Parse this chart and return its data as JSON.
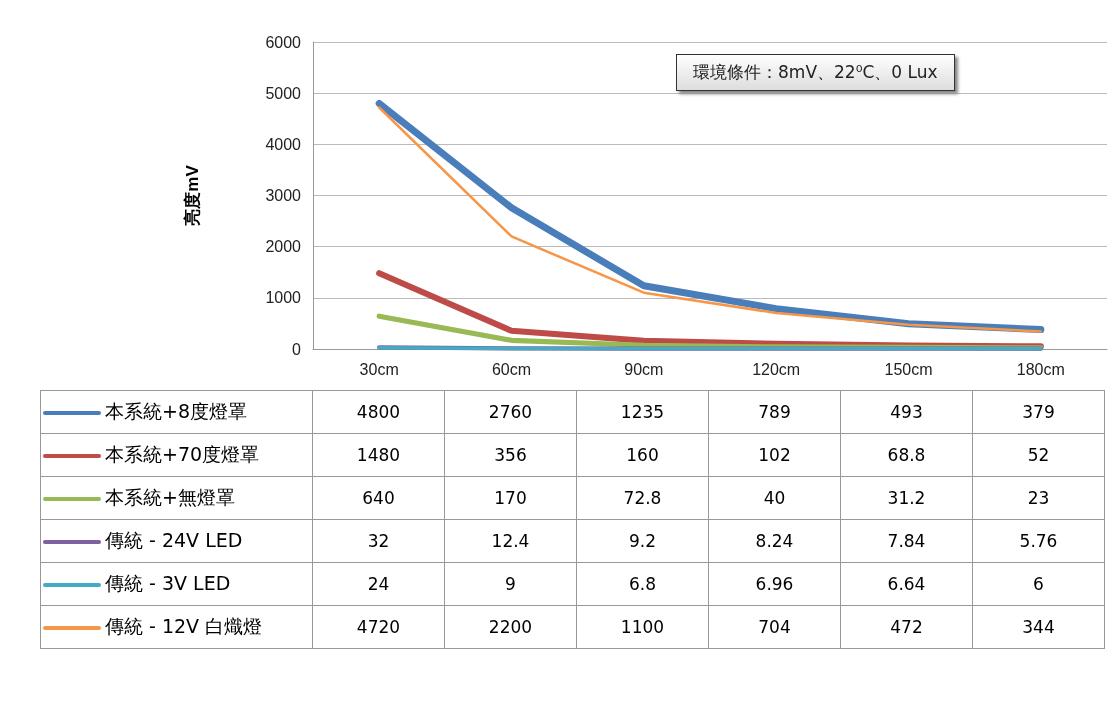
{
  "chart_data": {
    "type": "line",
    "ylabel": "亮度mV",
    "categories": [
      "30cm",
      "60cm",
      "90cm",
      "120cm",
      "150cm",
      "180cm"
    ],
    "series": [
      {
        "name": "本系統+8度燈罩",
        "color": "#4a7ebb",
        "values": [
          4800,
          2760,
          1235,
          789,
          493,
          379
        ]
      },
      {
        "name": "本系統+70度燈罩",
        "color": "#be4b48",
        "values": [
          1480,
          356,
          160,
          102,
          68.8,
          52
        ]
      },
      {
        "name": "本系統+無燈罩",
        "color": "#98b954",
        "values": [
          640,
          170,
          72.8,
          40,
          31.2,
          23
        ]
      },
      {
        "name": "傳統 - 24V LED",
        "color": "#7d60a0",
        "values": [
          32,
          12.4,
          9.2,
          8.24,
          7.84,
          5.76
        ]
      },
      {
        "name": "傳統 - 3V LED",
        "color": "#46aac5",
        "values": [
          24,
          9,
          6.8,
          6.96,
          6.64,
          6
        ]
      },
      {
        "name": "傳統 - 12V 白熾燈",
        "color": "#f79646",
        "values": [
          4720,
          2200,
          1100,
          704,
          472,
          344
        ]
      }
    ],
    "ylim": [
      0,
      6000
    ],
    "yticks": [
      0,
      1000,
      2000,
      3000,
      4000,
      5000,
      6000
    ],
    "grid": "y",
    "legend": "bottom",
    "marker": "none",
    "line_style": "solid",
    "data_labels": true,
    "annotations": [
      "環境條件：8mV、22⁰C、0 Lux"
    ]
  }
}
